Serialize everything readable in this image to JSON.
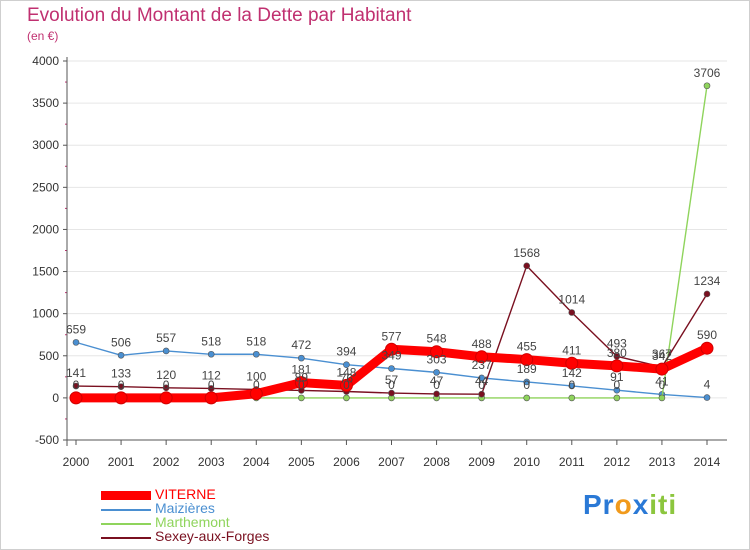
{
  "title": "Evolution du Montant de la Dette par Habitant",
  "subtitle": "(en €)",
  "logo": {
    "parts": [
      "Pr",
      "o",
      "x",
      "iti"
    ],
    "colors": [
      "#2a79d6",
      "#f19a1c",
      "#2a79d6",
      "#8cc63e"
    ]
  },
  "chart_data": {
    "type": "line",
    "x": [
      "2000",
      "2001",
      "2002",
      "2003",
      "2004",
      "2005",
      "2006",
      "2007",
      "2008",
      "2009",
      "2010",
      "2011",
      "2012",
      "2013",
      "2014"
    ],
    "ylim": [
      -500,
      4000
    ],
    "yticks": [
      "-500",
      "0",
      "500",
      "1000",
      "1500",
      "2000",
      "2500",
      "3000",
      "3500",
      "4000"
    ],
    "legend_position": "bottom-left",
    "series": [
      {
        "name": "VITERNE",
        "color": "#ff0000",
        "values": [
          0,
          0,
          0,
          0,
          50,
          181,
          148,
          577,
          548,
          488,
          455,
          411,
          380,
          342,
          590
        ],
        "labels": [
          "",
          "",
          "",
          "",
          "",
          "181",
          "148",
          "577",
          "548",
          "488",
          "455",
          "411",
          "380",
          "342",
          "590"
        ]
      },
      {
        "name": "Maizières",
        "color": "#4a8fd1",
        "values": [
          659,
          506,
          557,
          518,
          518,
          472,
          394,
          349,
          303,
          237,
          189,
          142,
          91,
          41,
          4
        ],
        "labels": [
          "659",
          "506",
          "557",
          "518",
          "518",
          "472",
          "394",
          "349",
          "303",
          "237",
          "189",
          "142",
          "91",
          "41",
          "4"
        ]
      },
      {
        "name": "Marthemont",
        "color": "#8fd45c",
        "values": [
          0,
          0,
          0,
          0,
          0,
          0,
          0,
          0,
          0,
          0,
          0,
          0,
          0,
          0,
          3706
        ],
        "labels": [
          "0",
          "0",
          "0",
          "0",
          "0",
          "0",
          "0",
          "0",
          "0",
          "0",
          "0",
          "0",
          "0",
          "0",
          "3706"
        ]
      },
      {
        "name": "Sexey-aux-Forges",
        "color": "#7a1020",
        "values": [
          141,
          133,
          120,
          112,
          100,
          89,
          76,
          57,
          47,
          44,
          1568,
          1014,
          493,
          367,
          1234
        ],
        "labels": [
          "141",
          "133",
          "120",
          "112",
          "100",
          "89",
          "76",
          "57",
          "47",
          "44",
          "1568",
          "1014",
          "493",
          "367",
          "1234"
        ]
      }
    ]
  }
}
